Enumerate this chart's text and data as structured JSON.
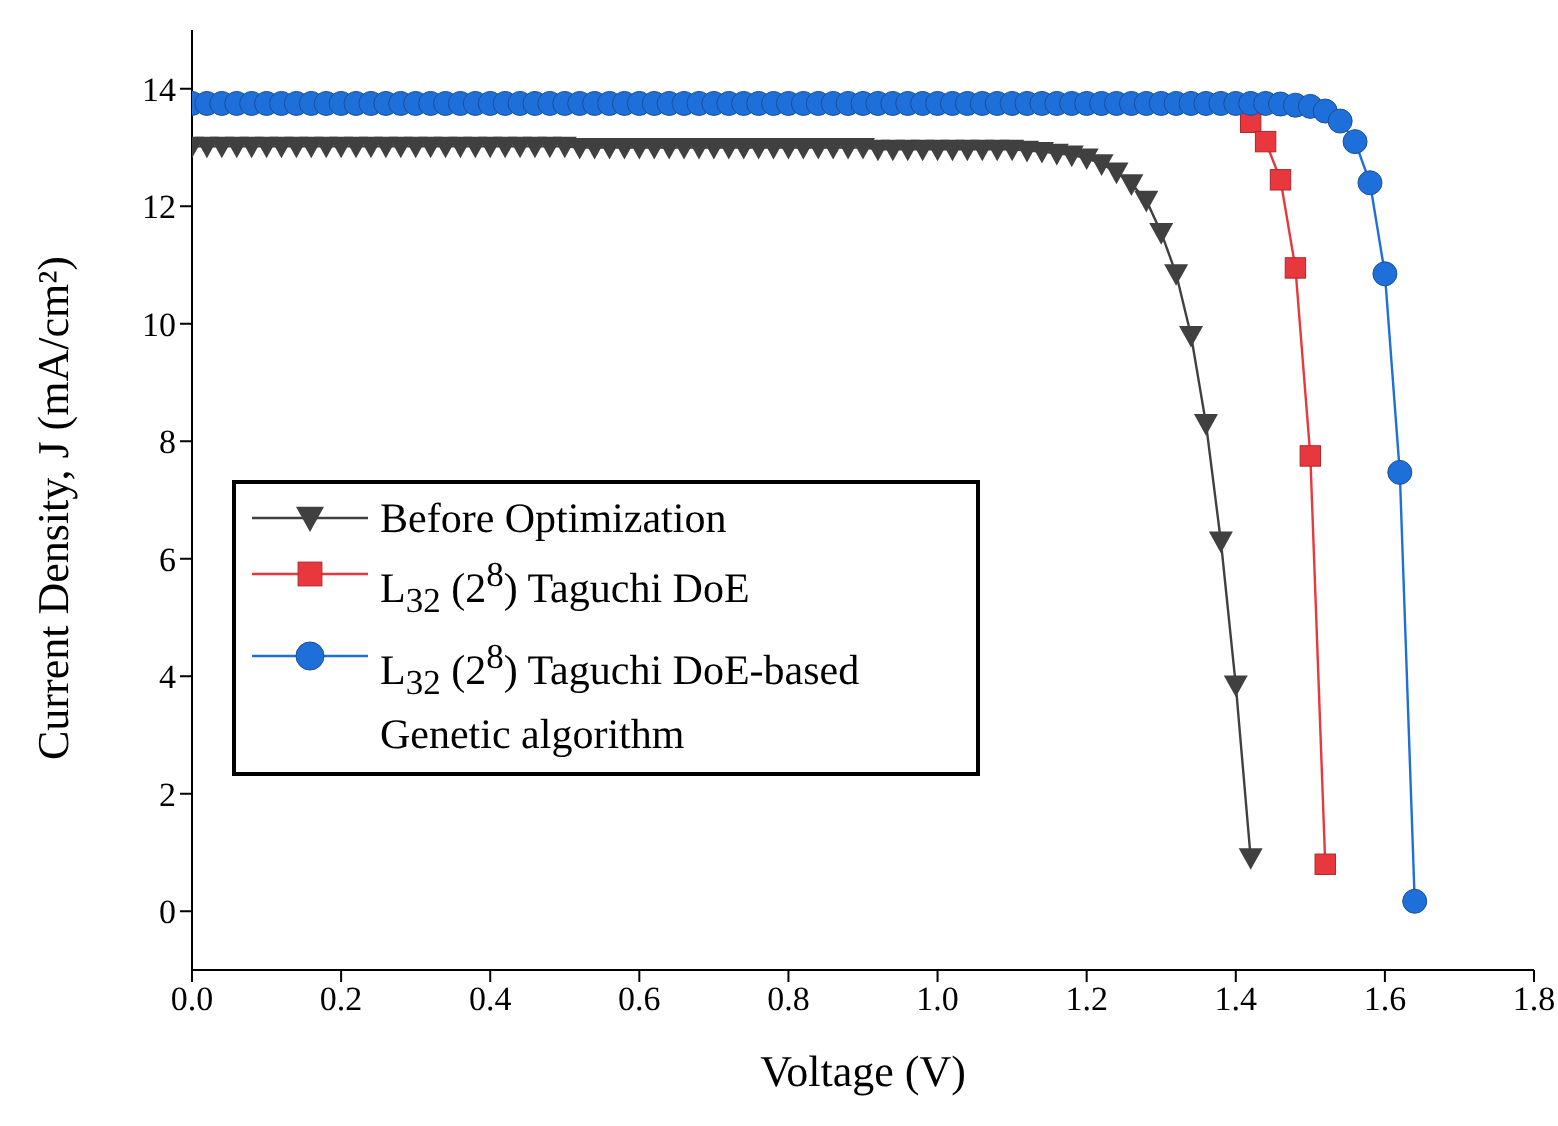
{
  "chart_data": {
    "type": "line",
    "xlabel": "Voltage (V)",
    "ylabel": "Current Density, J (mA/cm²)",
    "xlim": [
      0,
      1.8
    ],
    "ylim": [
      -1,
      15
    ],
    "xticks": [
      {
        "value": 0,
        "label": "0.0"
      },
      {
        "value": 0.2,
        "label": "0.2"
      },
      {
        "value": 0.4,
        "label": "0.4"
      },
      {
        "value": 0.6,
        "label": "0.6"
      },
      {
        "value": 0.8,
        "label": "0.8"
      },
      {
        "value": 1,
        "label": "1.0"
      },
      {
        "value": 1.2,
        "label": "1.2"
      },
      {
        "value": 1.4,
        "label": "1.4"
      },
      {
        "value": 1.6,
        "label": "1.6"
      },
      {
        "value": 1.8,
        "label": "1.8"
      }
    ],
    "yticks": [
      0,
      2,
      4,
      6,
      8,
      10,
      12,
      14
    ],
    "grid": false,
    "legend": "left",
    "line_style": "solid",
    "series": [
      {
        "name": "Before Optimization",
        "color": "#404040",
        "marker": "triangle",
        "x": [
          0,
          0.02,
          0.04,
          0.06,
          0.08,
          0.1,
          0.12,
          0.14,
          0.16,
          0.18,
          0.2,
          0.22,
          0.24,
          0.26,
          0.28,
          0.3,
          0.32,
          0.34,
          0.36,
          0.38,
          0.4,
          0.42,
          0.44,
          0.46,
          0.48,
          0.5,
          0.52,
          0.54,
          0.56,
          0.58,
          0.6,
          0.62,
          0.64,
          0.66,
          0.68,
          0.7,
          0.72,
          0.74,
          0.76,
          0.78,
          0.8,
          0.82,
          0.84,
          0.86,
          0.88,
          0.9,
          0.92,
          0.94,
          0.96,
          0.98,
          1,
          1.02,
          1.04,
          1.06,
          1.08,
          1.1,
          1.12,
          1.14,
          1.16,
          1.18,
          1.2,
          1.22,
          1.24,
          1.26,
          1.28,
          1.3,
          1.32,
          1.34,
          1.36,
          1.38,
          1.4,
          1.42
        ],
        "values": [
          13.02,
          13.02,
          13.02,
          13.02,
          13.02,
          13.02,
          13.02,
          13.02,
          13.02,
          13.02,
          13.02,
          13.02,
          13.02,
          13.02,
          13.02,
          13.02,
          13.02,
          13.02,
          13.02,
          13.02,
          13.02,
          13.02,
          13.02,
          13.02,
          13.02,
          13.02,
          13.0,
          13.0,
          13.0,
          13.0,
          13.0,
          13.0,
          13.0,
          13.0,
          13.0,
          13.0,
          13.0,
          13.0,
          13.0,
          13.0,
          13.0,
          13.0,
          13.0,
          13.0,
          13.0,
          13.0,
          12.97,
          12.97,
          12.97,
          12.97,
          12.97,
          12.97,
          12.97,
          12.97,
          12.97,
          12.97,
          12.95,
          12.93,
          12.9,
          12.87,
          12.82,
          12.72,
          12.58,
          12.38,
          12.1,
          11.55,
          10.85,
          9.8,
          8.3,
          6.3,
          3.85,
          0.91
        ]
      },
      {
        "name": "L$_{32}$ (2$^{8}$) Taguchi DoE",
        "color": "#e8383d",
        "marker": "square",
        "x": [
          1.42,
          1.44,
          1.46,
          1.48,
          1.5,
          1.52
        ],
        "values": [
          13.43,
          13.1,
          12.45,
          10.95,
          7.75,
          0.8
        ]
      },
      {
        "name": "L$_{32}$ (2$^{8}$) Taguchi DoE-based Genetic algorithm",
        "color": "#1e6fd9",
        "marker": "circle",
        "x": [
          0,
          0.02,
          0.04,
          0.06,
          0.08,
          0.1,
          0.12,
          0.14,
          0.16,
          0.18,
          0.2,
          0.22,
          0.24,
          0.26,
          0.28,
          0.3,
          0.32,
          0.34,
          0.36,
          0.38,
          0.4,
          0.42,
          0.44,
          0.46,
          0.48,
          0.5,
          0.52,
          0.54,
          0.56,
          0.58,
          0.6,
          0.62,
          0.64,
          0.66,
          0.68,
          0.7,
          0.72,
          0.74,
          0.76,
          0.78,
          0.8,
          0.82,
          0.84,
          0.86,
          0.88,
          0.9,
          0.92,
          0.94,
          0.96,
          0.98,
          1,
          1.02,
          1.04,
          1.06,
          1.08,
          1.1,
          1.12,
          1.14,
          1.16,
          1.18,
          1.2,
          1.22,
          1.24,
          1.26,
          1.28,
          1.3,
          1.32,
          1.34,
          1.36,
          1.38,
          1.4,
          1.42,
          1.44,
          1.46,
          1.48,
          1.5,
          1.52,
          1.54,
          1.56,
          1.58,
          1.6,
          1.62,
          1.64
        ],
        "values": [
          13.75,
          13.75,
          13.75,
          13.75,
          13.75,
          13.75,
          13.75,
          13.75,
          13.75,
          13.75,
          13.75,
          13.75,
          13.75,
          13.75,
          13.75,
          13.75,
          13.75,
          13.75,
          13.75,
          13.75,
          13.75,
          13.75,
          13.75,
          13.75,
          13.75,
          13.75,
          13.75,
          13.75,
          13.75,
          13.75,
          13.75,
          13.75,
          13.75,
          13.75,
          13.75,
          13.75,
          13.75,
          13.75,
          13.75,
          13.75,
          13.75,
          13.75,
          13.75,
          13.75,
          13.75,
          13.75,
          13.75,
          13.75,
          13.75,
          13.75,
          13.75,
          13.75,
          13.75,
          13.75,
          13.75,
          13.75,
          13.75,
          13.75,
          13.75,
          13.75,
          13.75,
          13.75,
          13.75,
          13.75,
          13.75,
          13.75,
          13.75,
          13.75,
          13.75,
          13.75,
          13.75,
          13.75,
          13.75,
          13.74,
          13.72,
          13.7,
          13.62,
          13.45,
          13.1,
          12.4,
          10.85,
          7.47,
          0.17
        ]
      }
    ]
  }
}
